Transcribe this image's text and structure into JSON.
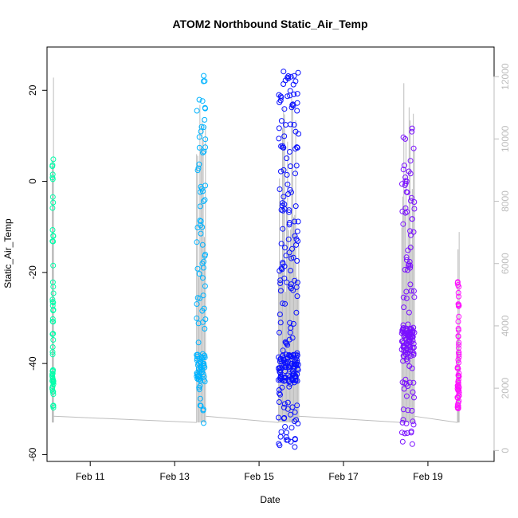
{
  "chart_data": {
    "type": "scatter",
    "title": "ATOM2 Northbound Static_Air_Temp",
    "xlabel": "Date",
    "ylabel": "Static_Air_Temp",
    "x_ticks": [
      "Feb 11",
      "Feb 13",
      "Feb 15",
      "Feb 17",
      "Feb 19"
    ],
    "y_ticks": [
      "-60",
      "-40",
      "-20",
      "0",
      "20"
    ],
    "y2_ticks": [
      "0",
      "2000",
      "4000",
      "6000",
      "8000",
      "10000",
      "12000"
    ],
    "xlim": [
      "2022-02-09T23:26",
      "2022-02-20T13:38"
    ],
    "ylim": [
      -61.5,
      29.5
    ],
    "y2lim": [
      -350,
      12950
    ],
    "grid": false,
    "legend": "none",
    "point_style": "open circle",
    "altitude_line_color": "#bdbdbd",
    "series": [
      {
        "flight": 1,
        "color": "#00ffaa",
        "x": [
          "2022-02-10T02:24",
          "2022-02-10T02:38",
          "2022-02-10T02:53",
          "2022-02-10T03:07"
        ],
        "ymin": -50.5,
        "ymax": 5.0,
        "ymode": -44.0
      },
      {
        "flight": 2,
        "color": "#00b3ff",
        "x": [
          "2022-02-13T12:29",
          "2022-02-13T13:12",
          "2022-02-13T13:55",
          "2022-02-13T14:38",
          "2022-02-13T15:22",
          "2022-02-13T16:05",
          "2022-02-13T16:48",
          "2022-02-13T17:31"
        ],
        "ymin": -53.5,
        "ymax": 25.0,
        "ymode": -41.0
      },
      {
        "flight": 3,
        "color": "#0a10ff",
        "x": [
          "2022-02-15T11:02",
          "2022-02-15T12:29",
          "2022-02-15T13:55",
          "2022-02-15T15:22",
          "2022-02-15T16:48",
          "2022-02-15T18:14",
          "2022-02-15T19:41",
          "2022-02-15T21:07",
          "2022-02-15T22:34"
        ],
        "ymin": -59.0,
        "ymax": 26.0,
        "ymode": -41.0
      },
      {
        "flight": 4,
        "color": "#7a10ff",
        "x": [
          "2022-02-18T09:07",
          "2022-02-18T10:34",
          "2022-02-18T12:00",
          "2022-02-18T13:26",
          "2022-02-18T14:53",
          "2022-02-18T16:19"
        ],
        "ymin": -58.0,
        "ymax": 12.0,
        "ymode": -35.0
      },
      {
        "flight": 5,
        "color": "#ff10ff",
        "x": [
          "2022-02-19T16:48",
          "2022-02-19T17:17",
          "2022-02-19T17:46"
        ],
        "ymin": -50.5,
        "ymax": -22.0,
        "ymode": -47.0
      }
    ]
  }
}
